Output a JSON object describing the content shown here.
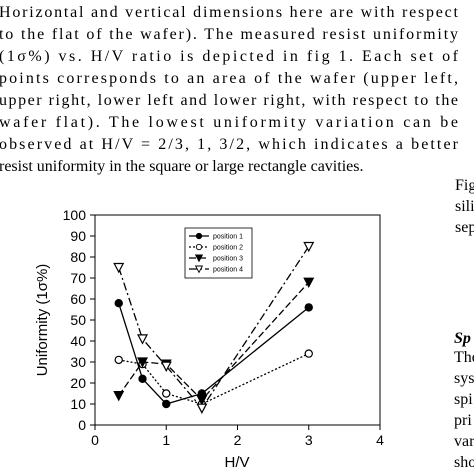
{
  "paragraph": [
    "Horizontal and vertical dimensions here are with respect",
    "to the flat of the wafer). The measured resist uniformity",
    "(1σ%) vs. H/V ratio  is depicted in fig 1. Each set of",
    "points corresponds to an area of the wafer (upper left,",
    "upper right, lower left and lower right, with respect to the",
    "wafer flat). The lowest uniformity variation can be",
    "observed at H/V = 2/3, 1, 3/2, which indicates a better",
    "resist uniformity in the square or large rectangle cavities."
  ],
  "side_top": [
    "Fig",
    "sili",
    "sep"
  ],
  "side_heading": "Sp",
  "side_bottom": [
    "The",
    "sys",
    "spi",
    "pri",
    "var",
    "sho"
  ],
  "chart_data": {
    "type": "line",
    "xlabel": "H/V",
    "ylabel": "Uniformity (1σ%)",
    "x": [
      0.333,
      0.667,
      1,
      1.5,
      3
    ],
    "xlim": [
      0,
      4
    ],
    "xticks": [
      0,
      1,
      2,
      3,
      4
    ],
    "ylim": [
      0,
      100
    ],
    "yticks": [
      0,
      10,
      20,
      30,
      40,
      50,
      60,
      70,
      80,
      90,
      100
    ],
    "legend": "upper center",
    "series": [
      {
        "name": "position 1",
        "color": "#000000",
        "marker": "circle-filled",
        "linestyle": "solid",
        "values": [
          58,
          22,
          10,
          15,
          56
        ]
      },
      {
        "name": "position 2",
        "color": "#000000",
        "marker": "circle-open",
        "linestyle": "dotted",
        "values": [
          31,
          29,
          15,
          10,
          34
        ]
      },
      {
        "name": "position 3",
        "color": "#000000",
        "marker": "triangle-filled",
        "linestyle": "dashed",
        "values": [
          14,
          30,
          29,
          12,
          68
        ]
      },
      {
        "name": "position 4",
        "color": "#000000",
        "marker": "triangle-open",
        "linestyle": "dashdot",
        "values": [
          75,
          41,
          28,
          8,
          85
        ]
      }
    ]
  }
}
